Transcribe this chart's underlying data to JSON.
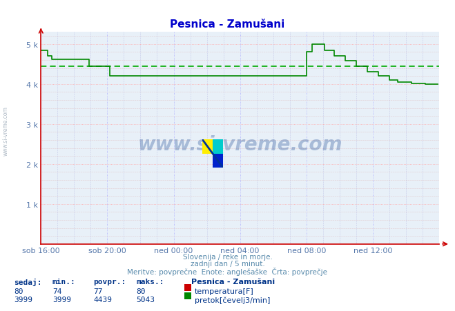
{
  "title": "Pesnica - Zamušani",
  "title_color": "#0000cc",
  "bg_color": "#e8f0f8",
  "fig_bg_color": "#ffffff",
  "ylim": [
    0,
    5300
  ],
  "yticks_major": [
    0,
    1000,
    2000,
    3000,
    4000,
    5000
  ],
  "ytick_labels": [
    "",
    "1 k",
    "2 k",
    "3 k",
    "4 k",
    "5 k"
  ],
  "yticks_minor": [
    200,
    400,
    600,
    800,
    1200,
    1400,
    1600,
    1800,
    2200,
    2400,
    2600,
    2800,
    3200,
    3400,
    3600,
    3800,
    4200,
    4400,
    4600,
    4800,
    5200
  ],
  "xtick_labels": [
    "sob 16:00",
    "sob 20:00",
    "ned 00:00",
    "ned 04:00",
    "ned 08:00",
    "ned 12:00"
  ],
  "xtick_positions": [
    0,
    48,
    96,
    144,
    192,
    240
  ],
  "xticks_minor": [
    12,
    24,
    36,
    60,
    72,
    84,
    108,
    120,
    132,
    156,
    168,
    180,
    204,
    216,
    228,
    252,
    264,
    276
  ],
  "xlabel_color": "#5577aa",
  "ylabel_color": "#5577aa",
  "grid_color_major_h": "#ffaaaa",
  "grid_color_major_v": "#aaaaff",
  "grid_color_minor_h": "#ddaaaa",
  "grid_color_minor_v": "#aaaadd",
  "flow_color": "#008800",
  "avg_line_color": "#00aa00",
  "avg_flow": 4439,
  "avg_temp": 77,
  "min_flow": 3999,
  "max_flow": 5043,
  "min_temp": 74,
  "max_temp": 80,
  "cur_flow": 3999,
  "cur_temp": 80,
  "subtitle1": "Slovenija / reke in morje.",
  "subtitle2": "zadnji dan / 5 minut.",
  "subtitle3": "Meritve: povprečne  Enote: anglešaške  Črta: povprečje",
  "legend_title": "Pesnica - Zamušani",
  "footer_color": "#5588aa",
  "axis_color": "#cc0000",
  "n_points": 288
}
